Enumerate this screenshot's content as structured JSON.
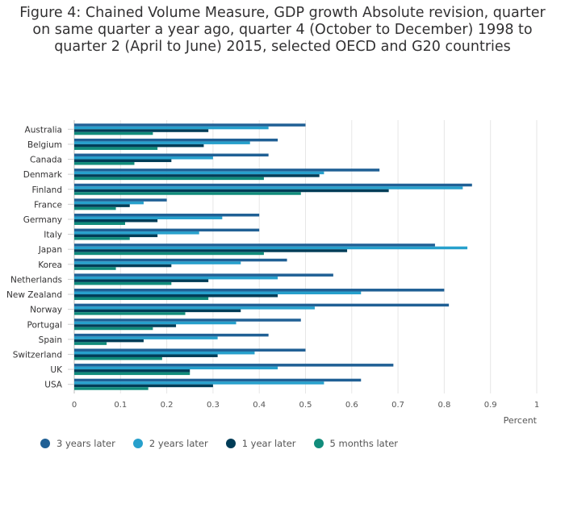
{
  "title": "Figure 4: Chained Volume Measure, GDP growth Absolute revision, quarter on same quarter a year ago, quarter 4 (October to December) 1998 to quarter 2 (April to June) 2015, selected OECD and G20 countries",
  "chart_data": {
    "type": "bar",
    "orientation": "horizontal",
    "title": "Figure 4: Chained Volume Measure, GDP growth Absolute revision, quarter on same quarter a year ago, quarter 4 (October to December) 1998 to quarter 2 (April to June) 2015, selected OECD and G20 countries",
    "xlabel": "Percent",
    "ylabel": "",
    "xlim": [
      0,
      1
    ],
    "xticks": [
      "0",
      "0.1",
      "0.2",
      "0.3",
      "0.4",
      "0.5",
      "0.6",
      "0.7",
      "0.8",
      "0.9",
      "1"
    ],
    "grid": true,
    "legend_position": "bottom",
    "categories": [
      "Australia",
      "Belgium",
      "Canada",
      "Denmark",
      "Finland",
      "France",
      "Germany",
      "Italy",
      "Japan",
      "Korea",
      "Netherlands",
      "New Zealand",
      "Norway",
      "Portugal",
      "Spain",
      "Switzerland",
      "UK",
      "USA"
    ],
    "series": [
      {
        "name": "3 years later",
        "color": "#206095",
        "values": [
          0.5,
          0.44,
          0.42,
          0.66,
          0.86,
          0.2,
          0.4,
          0.4,
          0.78,
          0.46,
          0.56,
          0.8,
          0.81,
          0.49,
          0.42,
          0.5,
          0.69,
          0.62
        ]
      },
      {
        "name": "2 years later",
        "color": "#27a0cc",
        "values": [
          0.42,
          0.38,
          0.3,
          0.54,
          0.84,
          0.15,
          0.32,
          0.27,
          0.85,
          0.36,
          0.44,
          0.62,
          0.52,
          0.35,
          0.31,
          0.39,
          0.44,
          0.54
        ]
      },
      {
        "name": "1 year later",
        "color": "#003c57",
        "values": [
          0.29,
          0.28,
          0.21,
          0.53,
          0.68,
          0.12,
          0.18,
          0.18,
          0.59,
          0.21,
          0.29,
          0.44,
          0.36,
          0.22,
          0.15,
          0.31,
          0.25,
          0.3
        ]
      },
      {
        "name": "5 months later",
        "color": "#118c7b",
        "values": [
          0.17,
          0.18,
          0.13,
          0.41,
          0.49,
          0.09,
          0.11,
          0.12,
          0.41,
          0.09,
          0.21,
          0.29,
          0.24,
          0.17,
          0.07,
          0.19,
          0.25,
          0.16
        ]
      }
    ]
  }
}
